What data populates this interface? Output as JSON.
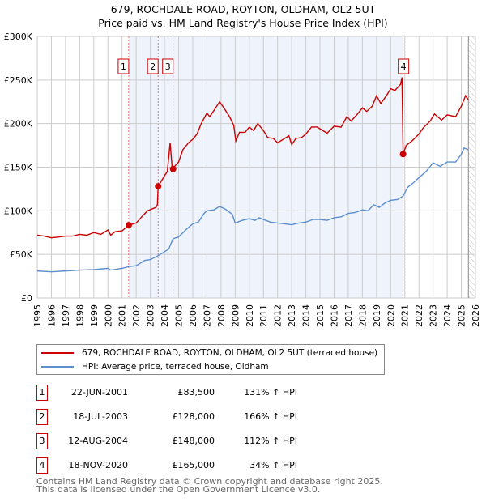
{
  "chart_data": {
    "type": "line",
    "title": "679, ROCHDALE ROAD, ROYTON, OLDHAM, OL2 5UT",
    "subtitle": "Price paid vs. HM Land Registry's House Price Index (HPI)",
    "ylim": [
      0,
      300000
    ],
    "xlim": [
      1995,
      2026
    ],
    "yticks": [
      {
        "v": 0,
        "label": "£0"
      },
      {
        "v": 50000,
        "label": "£50K"
      },
      {
        "v": 100000,
        "label": "£100K"
      },
      {
        "v": 150000,
        "label": "£150K"
      },
      {
        "v": 200000,
        "label": "£200K"
      },
      {
        "v": 250000,
        "label": "£250K"
      },
      {
        "v": 300000,
        "label": "£300K"
      }
    ],
    "xticks": [
      "1995",
      "1996",
      "1997",
      "1998",
      "1999",
      "2000",
      "2001",
      "2002",
      "2003",
      "2004",
      "2005",
      "2006",
      "2007",
      "2008",
      "2009",
      "2010",
      "2011",
      "2012",
      "2013",
      "2014",
      "2015",
      "2016",
      "2017",
      "2018",
      "2019",
      "2020",
      "2021",
      "2022",
      "2023",
      "2024",
      "2025",
      "2026"
    ],
    "grid": true,
    "shaded_range": [
      2001.47,
      2020.88
    ],
    "forecast_hatch_from": 2025.5,
    "series": [
      {
        "name": "679, ROCHDALE ROAD, ROYTON, OLDHAM, OL2 5UT (terraced house)",
        "color": "#cc0000",
        "points": [
          [
            1995,
            72
          ],
          [
            1995.5,
            71
          ],
          [
            1996,
            69
          ],
          [
            1996.5,
            70
          ],
          [
            1997,
            71
          ],
          [
            1997.5,
            71
          ],
          [
            1998,
            73
          ],
          [
            1998.5,
            72
          ],
          [
            1999,
            75
          ],
          [
            1999.5,
            73
          ],
          [
            2000,
            78
          ],
          [
            2000.2,
            72
          ],
          [
            2000.5,
            76
          ],
          [
            2001,
            77
          ],
          [
            2001.47,
            83.5
          ],
          [
            2002,
            86
          ],
          [
            2002.5,
            95
          ],
          [
            2002.8,
            100
          ],
          [
            2003.4,
            104
          ],
          [
            2003.5,
            107
          ],
          [
            2003.55,
            128
          ],
          [
            2003.7,
            132
          ],
          [
            2004,
            140
          ],
          [
            2004.2,
            145
          ],
          [
            2004.4,
            178
          ],
          [
            2004.55,
            148
          ],
          [
            2005,
            156
          ],
          [
            2005.3,
            170
          ],
          [
            2005.7,
            178
          ],
          [
            2006,
            182
          ],
          [
            2006.3,
            188
          ],
          [
            2006.6,
            200
          ],
          [
            2007,
            212
          ],
          [
            2007.2,
            208
          ],
          [
            2007.5,
            215
          ],
          [
            2007.9,
            225
          ],
          [
            2008.2,
            218
          ],
          [
            2008.6,
            208
          ],
          [
            2008.9,
            198
          ],
          [
            2009.05,
            180
          ],
          [
            2009.3,
            190
          ],
          [
            2009.7,
            190
          ],
          [
            2010,
            196
          ],
          [
            2010.3,
            192
          ],
          [
            2010.6,
            200
          ],
          [
            2011,
            192
          ],
          [
            2011.3,
            184
          ],
          [
            2011.7,
            183
          ],
          [
            2012,
            178
          ],
          [
            2012.4,
            182
          ],
          [
            2012.8,
            186
          ],
          [
            2013,
            176
          ],
          [
            2013.3,
            183
          ],
          [
            2013.7,
            184
          ],
          [
            2014,
            188
          ],
          [
            2014.4,
            196
          ],
          [
            2014.8,
            196
          ],
          [
            2015.2,
            192
          ],
          [
            2015.5,
            189
          ],
          [
            2016,
            197
          ],
          [
            2016.5,
            196
          ],
          [
            2016.9,
            208
          ],
          [
            2017.2,
            203
          ],
          [
            2017.6,
            210
          ],
          [
            2018,
            218
          ],
          [
            2018.3,
            214
          ],
          [
            2018.7,
            220
          ],
          [
            2019,
            232
          ],
          [
            2019.3,
            223
          ],
          [
            2019.7,
            232
          ],
          [
            2020,
            240
          ],
          [
            2020.3,
            238
          ],
          [
            2020.7,
            245
          ],
          [
            2020.8,
            253
          ],
          [
            2020.88,
            165
          ],
          [
            2021.1,
            175
          ],
          [
            2021.5,
            180
          ],
          [
            2022,
            188
          ],
          [
            2022.3,
            195
          ],
          [
            2022.8,
            203
          ],
          [
            2023.1,
            211
          ],
          [
            2023.6,
            204
          ],
          [
            2024,
            210
          ],
          [
            2024.6,
            208
          ],
          [
            2025,
            220
          ],
          [
            2025.3,
            232
          ],
          [
            2025.5,
            227
          ]
        ]
      },
      {
        "name": "HPI: Average price, terraced house, Oldham",
        "color": "#5b8fd0",
        "points": [
          [
            1995,
            31
          ],
          [
            1996,
            30
          ],
          [
            1997,
            31
          ],
          [
            1998,
            32
          ],
          [
            1999,
            32.5
          ],
          [
            2000,
            34
          ],
          [
            2000.2,
            32
          ],
          [
            2001,
            34
          ],
          [
            2001.5,
            36
          ],
          [
            2002,
            37
          ],
          [
            2002.6,
            43
          ],
          [
            2003,
            44
          ],
          [
            2003.5,
            48
          ],
          [
            2004,
            53
          ],
          [
            2004.3,
            56
          ],
          [
            2004.6,
            68
          ],
          [
            2005,
            70
          ],
          [
            2005.5,
            78
          ],
          [
            2006,
            85
          ],
          [
            2006.4,
            87
          ],
          [
            2006.8,
            97
          ],
          [
            2007,
            100
          ],
          [
            2007.5,
            101
          ],
          [
            2007.9,
            105
          ],
          [
            2008.3,
            102
          ],
          [
            2008.8,
            96
          ],
          [
            2009,
            86
          ],
          [
            2009.5,
            89
          ],
          [
            2010,
            91
          ],
          [
            2010.4,
            89
          ],
          [
            2010.7,
            92
          ],
          [
            2011,
            90
          ],
          [
            2011.5,
            87
          ],
          [
            2012,
            86
          ],
          [
            2012.5,
            85
          ],
          [
            2013,
            84
          ],
          [
            2013.5,
            86
          ],
          [
            2014,
            87
          ],
          [
            2014.5,
            90
          ],
          [
            2015,
            90
          ],
          [
            2015.5,
            89
          ],
          [
            2016,
            92
          ],
          [
            2016.5,
            93
          ],
          [
            2017,
            97
          ],
          [
            2017.5,
            98
          ],
          [
            2018,
            101
          ],
          [
            2018.4,
            100
          ],
          [
            2018.8,
            107
          ],
          [
            2019.2,
            104
          ],
          [
            2019.6,
            109
          ],
          [
            2020,
            112
          ],
          [
            2020.5,
            113
          ],
          [
            2020.88,
            117
          ],
          [
            2021.2,
            127
          ],
          [
            2021.6,
            132
          ],
          [
            2022,
            138
          ],
          [
            2022.5,
            145
          ],
          [
            2023,
            155
          ],
          [
            2023.5,
            151
          ],
          [
            2024,
            156
          ],
          [
            2024.6,
            156
          ],
          [
            2025,
            165
          ],
          [
            2025.2,
            172
          ],
          [
            2025.5,
            170
          ]
        ]
      }
    ],
    "sales": [
      {
        "n": "1",
        "x": 2001.47,
        "y": 83.5,
        "date": "22-JUN-2001",
        "price": "£83,500",
        "hpi": "131% ↑ HPI"
      },
      {
        "n": "2",
        "x": 2003.55,
        "y": 128,
        "date": "18-JUL-2003",
        "price": "£128,000",
        "hpi": "166% ↑ HPI"
      },
      {
        "n": "3",
        "x": 2004.61,
        "y": 148,
        "date": "12-AUG-2004",
        "price": "£148,000",
        "hpi": "112% ↑ HPI"
      },
      {
        "n": "4",
        "x": 2020.88,
        "y": 165,
        "date": "18-NOV-2020",
        "price": "£165,000",
        "hpi": "34% ↑ HPI"
      }
    ],
    "y_units": "thousands GBP"
  },
  "footer": {
    "line1": "Contains HM Land Registry data © Crown copyright and database right 2025.",
    "line2": "This data is licensed under the Open Government Licence v3.0."
  }
}
